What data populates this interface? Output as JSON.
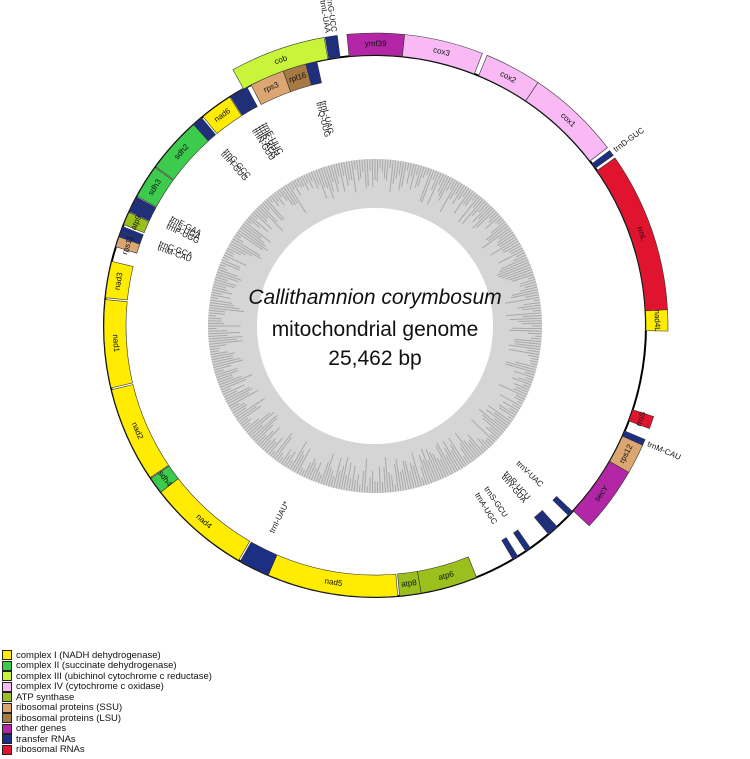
{
  "title": {
    "species": "Callithamnion corymbosum",
    "type": "mitochondrial genome",
    "length": "25,462 bp"
  },
  "colors": {
    "complex1": "#ffec00",
    "complex2": "#3ccb4d",
    "complex3": "#c8f53a",
    "complex4": "#f8b9f5",
    "atp": "#9bbf1c",
    "rps": "#dba672",
    "rpl": "#a57a46",
    "other": "#b326a6",
    "trna": "#1d2f82",
    "rrna": "#e0142e"
  },
  "legend": [
    {
      "label": "complex I (NADH dehydrogenase)",
      "color": "#ffec00"
    },
    {
      "label": "complex II (succinate dehydrogenase)",
      "color": "#3ccb4d"
    },
    {
      "label": "complex III (ubichinol cytochrome c reductase)",
      "color": "#c8f53a"
    },
    {
      "label": "complex IV (cytochrome c oxidase)",
      "color": "#f8b9f5"
    },
    {
      "label": "ATP synthase",
      "color": "#9bbf1c"
    },
    {
      "label": "ribosomal proteins (SSU)",
      "color": "#dba672"
    },
    {
      "label": "ribosomal proteins (LSU)",
      "color": "#a57a46"
    },
    {
      "label": "other genes",
      "color": "#b326a6"
    },
    {
      "label": "transfer RNAs",
      "color": "#1d2f82"
    },
    {
      "label": "ribosomal RNAs",
      "color": "#e0142e"
    }
  ],
  "genes": [
    {
      "name": "ymf39",
      "strand": "out",
      "start": -5.5,
      "end": 5.8,
      "cat": "other"
    },
    {
      "name": "cox3",
      "strand": "out",
      "start": 5.8,
      "end": 21.5,
      "cat": "complex4"
    },
    {
      "name": "cox2",
      "strand": "out",
      "start": 22.5,
      "end": 33.8,
      "cat": "complex4"
    },
    {
      "name": "cox1",
      "strand": "out",
      "start": 33.8,
      "end": 52.5,
      "cat": "complex4"
    },
    {
      "name": "trnD-GUC",
      "strand": "out",
      "start": 53.2,
      "end": 54.4,
      "cat": "trna"
    },
    {
      "name": "rrnL",
      "strand": "out",
      "start": 55.0,
      "end": 86.8,
      "cat": "rrna"
    },
    {
      "name": "nad4L",
      "strand": "out",
      "start": 86.8,
      "end": 91.0,
      "cat": "complex1"
    },
    {
      "name": "rrnS",
      "strand": "out",
      "start": 108.0,
      "end": 110.5,
      "cat": "rrna"
    },
    {
      "name": "trnM-CAU",
      "strand": "out",
      "start": 112.8,
      "end": 114.0,
      "cat": "trna"
    },
    {
      "name": "rps12",
      "strand": "out",
      "start": 114.0,
      "end": 120.0,
      "cat": "rps"
    },
    {
      "name": "secY",
      "strand": "out",
      "start": 120.0,
      "end": 133.0,
      "cat": "other"
    },
    {
      "name": "trnV-UAC",
      "strand": "in",
      "start": 133.2,
      "end": 134.4,
      "cat": "trna"
    },
    {
      "name": "trnR-UCU",
      "strand": "in",
      "start": 137.8,
      "end": 139.0,
      "cat": "trna"
    },
    {
      "name": "trnY-GUA",
      "strand": "in",
      "start": 139.0,
      "end": 140.2,
      "cat": "trna"
    },
    {
      "name": "trnS-GCU",
      "strand": "in",
      "start": 145.0,
      "end": 146.2,
      "cat": "trna"
    },
    {
      "name": "trnA-UGC",
      "strand": "in",
      "start": 148.2,
      "end": 149.4,
      "cat": "trna"
    },
    {
      "name": "atp6",
      "strand": "in",
      "start": 158.0,
      "end": 170.2,
      "cat": "atp"
    },
    {
      "name": "atp8",
      "strand": "in",
      "start": 170.2,
      "end": 174.8,
      "cat": "atp"
    },
    {
      "name": "nad5",
      "strand": "in",
      "start": 175.2,
      "end": 203.2,
      "cat": "complex1"
    },
    {
      "name": "trnI-UAU*",
      "strand": "in",
      "start": 203.2,
      "end": 209.8,
      "cat": "trna"
    },
    {
      "name": "nad4",
      "strand": "in",
      "start": 210.2,
      "end": 232.2,
      "cat": "complex1"
    },
    {
      "name": "sdh4",
      "strand": "in",
      "start": 232.2,
      "end": 235.8,
      "cat": "complex2"
    },
    {
      "name": "nad2",
      "strand": "in",
      "start": 236.0,
      "end": 256.4,
      "cat": "complex1"
    },
    {
      "name": "nad1",
      "strand": "in",
      "start": 256.8,
      "end": 275.6,
      "cat": "complex1"
    },
    {
      "name": "nad3",
      "strand": "in",
      "start": 276.0,
      "end": 283.8,
      "cat": "complex1"
    },
    {
      "name": "rps11",
      "strand": "in",
      "start": 287.0,
      "end": 289.2,
      "cat": "rps"
    },
    {
      "name": "trnM-CAU",
      "strand": "in",
      "start": 289.2,
      "end": 290.3,
      "cat": "trna"
    },
    {
      "name": "trnC-GCA",
      "strand": "in",
      "start": 290.4,
      "end": 291.5,
      "cat": "trna"
    },
    {
      "name": "atp9",
      "strand": "in",
      "start": 292.0,
      "end": 294.8,
      "cat": "atp"
    },
    {
      "name": "trnP-UGG",
      "strand": "in",
      "start": 295.0,
      "end": 296.1,
      "cat": "trna"
    },
    {
      "name": "trnS-UGA",
      "strand": "in",
      "start": 296.1,
      "end": 297.2,
      "cat": "trna"
    },
    {
      "name": "trnF-GAA",
      "strand": "in",
      "start": 297.3,
      "end": 298.4,
      "cat": "trna"
    },
    {
      "name": "sdh3",
      "strand": "in",
      "start": 298.6,
      "end": 305.8,
      "cat": "complex2"
    },
    {
      "name": "sdh2",
      "strand": "in",
      "start": 306.0,
      "end": 318.0,
      "cat": "complex2"
    },
    {
      "name": "trnH-GUG",
      "strand": "in",
      "start": 318.0,
      "end": 319.1,
      "cat": "trna"
    },
    {
      "name": "trnG-GCC",
      "strand": "in",
      "start": 319.1,
      "end": 320.2,
      "cat": "trna"
    },
    {
      "name": "nad6",
      "strand": "in",
      "start": 320.6,
      "end": 327.6,
      "cat": "complex1"
    },
    {
      "name": "trnN-GUU",
      "strand": "in",
      "start": 327.8,
      "end": 328.8,
      "cat": "trna"
    },
    {
      "name": "trnR-ACG",
      "strand": "in",
      "start": 328.8,
      "end": 329.8,
      "cat": "trna"
    },
    {
      "name": "trnK-UUU",
      "strand": "in",
      "start": 329.8,
      "end": 330.8,
      "cat": "trna"
    },
    {
      "name": "trnE-UUC",
      "strand": "in",
      "start": 330.8,
      "end": 331.8,
      "cat": "trna"
    },
    {
      "name": "rps3",
      "strand": "in",
      "start": 332.8,
      "end": 340.2,
      "cat": "rps"
    },
    {
      "name": "rpl16",
      "strand": "in",
      "start": 340.2,
      "end": 345.2,
      "cat": "rpl"
    },
    {
      "name": "trnQ-UUG",
      "strand": "in",
      "start": 345.2,
      "end": 346.4,
      "cat": "trna"
    },
    {
      "name": "trnL-UAG",
      "strand": "in",
      "start": 346.4,
      "end": 347.6,
      "cat": "trna"
    },
    {
      "name": "cob",
      "strand": "out",
      "start": 331.0,
      "end": 350.0,
      "cat": "complex3"
    },
    {
      "name": "trnL-UAA",
      "strand": "out",
      "start": 350.2,
      "end": 351.4,
      "cat": "trna"
    },
    {
      "name": "trnG-UCC",
      "strand": "out",
      "start": 351.4,
      "end": 352.6,
      "cat": "trna"
    }
  ],
  "gc_profile_label": ""
}
